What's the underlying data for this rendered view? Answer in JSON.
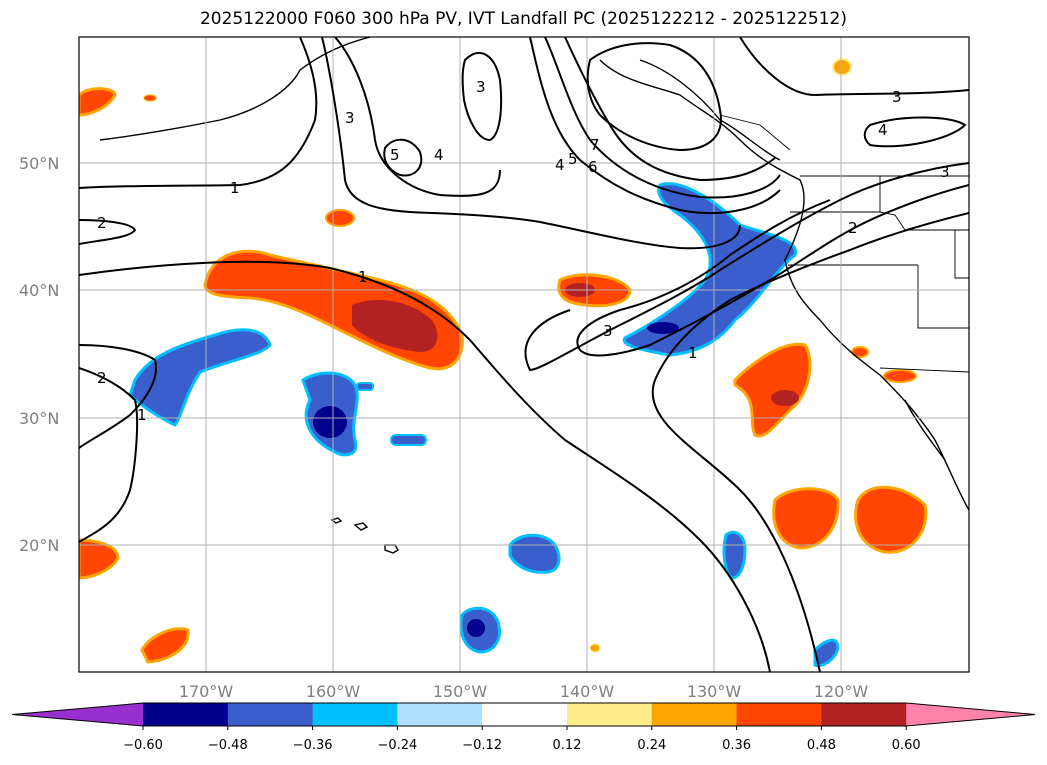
{
  "title": "2025122000 F060 300 hPa PV, IVT Landfall PC (2025122212 - 2025122512)",
  "lat_labels": [
    "50°N",
    "40°N",
    "30°N",
    "20°N"
  ],
  "lon_labels": [
    "170°W",
    "160°W",
    "150°W",
    "140°W",
    "130°W",
    "120°W"
  ],
  "colorbar": {
    "ticks": [
      "−0.60",
      "−0.48",
      "−0.36",
      "−0.24",
      "−0.12",
      "0.12",
      "0.24",
      "0.36",
      "0.48",
      "0.60"
    ],
    "colors": [
      "#9a2fcf",
      "#00008c",
      "#3a5fcd",
      "#00bfff",
      "#b0e2ff",
      "#ffffff",
      "#ffec8b",
      "#ffa500",
      "#ff4500",
      "#b22222",
      "#ff82ab"
    ]
  },
  "contour_labels": [
    "1",
    "1",
    "1",
    "1",
    "2",
    "2",
    "2",
    "3",
    "3",
    "3",
    "3",
    "4",
    "4",
    "4",
    "5",
    "5",
    "6",
    "7"
  ],
  "palette": {
    "neg_dark": "#00008c",
    "neg_mid": "#3a5fcd",
    "neg_light": "#00bfff",
    "pos_orange": "#ff4500",
    "pos_dark": "#b22222",
    "pos_light": "#ffa500",
    "pos_yellow": "#ffec8b"
  }
}
